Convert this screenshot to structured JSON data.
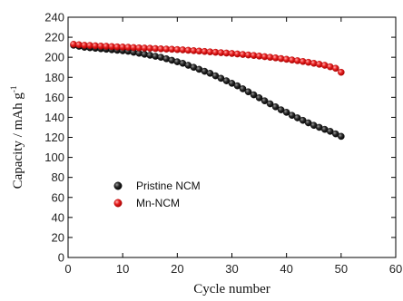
{
  "chart_data": {
    "type": "scatter",
    "xlabel": "Cycle number",
    "ylabel": "Capacity  / mAh g",
    "ylabel_sup": "-1",
    "xlim": [
      0,
      60
    ],
    "ylim": [
      0,
      240
    ],
    "xticks": [
      0,
      10,
      20,
      30,
      40,
      50,
      60
    ],
    "yticks": [
      0,
      20,
      40,
      60,
      80,
      100,
      120,
      140,
      160,
      180,
      200,
      220,
      240
    ],
    "grid": false,
    "legend_position": "left-center",
    "series": [
      {
        "name": "Pristine NCM",
        "color": "#111111",
        "x": [
          1,
          2,
          3,
          4,
          5,
          6,
          7,
          8,
          9,
          10,
          11,
          12,
          13,
          14,
          15,
          16,
          17,
          18,
          19,
          20,
          21,
          22,
          23,
          24,
          25,
          26,
          27,
          28,
          29,
          30,
          31,
          32,
          33,
          34,
          35,
          36,
          37,
          38,
          39,
          40,
          41,
          42,
          43,
          44,
          45,
          46,
          47,
          48,
          49,
          50
        ],
        "values": [
          212,
          211,
          210,
          209.5,
          209,
          208.5,
          208,
          207.5,
          207,
          206.5,
          206,
          205,
          204,
          203,
          202,
          201,
          200,
          198.5,
          197,
          195.5,
          194,
          192,
          190,
          188,
          186,
          184,
          181.5,
          179,
          176.5,
          174,
          171.5,
          168.5,
          165.5,
          162.5,
          159.5,
          156.5,
          153.5,
          150.5,
          147.5,
          145,
          142,
          139.5,
          137,
          134.5,
          132,
          130,
          128,
          126,
          123.5,
          121
        ]
      },
      {
        "name": "Mn-NCM",
        "color": "#e21a1a",
        "x": [
          1,
          2,
          3,
          4,
          5,
          6,
          7,
          8,
          9,
          10,
          11,
          12,
          13,
          14,
          15,
          16,
          17,
          18,
          19,
          20,
          21,
          22,
          23,
          24,
          25,
          26,
          27,
          28,
          29,
          30,
          31,
          32,
          33,
          34,
          35,
          36,
          37,
          38,
          39,
          40,
          41,
          42,
          43,
          44,
          45,
          46,
          47,
          48,
          49,
          50
        ],
        "values": [
          213,
          212.5,
          212,
          211.8,
          211.5,
          211.2,
          211,
          210.7,
          210.4,
          210.2,
          210,
          209.7,
          209.4,
          209.2,
          209,
          208.7,
          208.4,
          208.2,
          208,
          207.7,
          207.4,
          207,
          206.6,
          206.2,
          205.8,
          205.4,
          205,
          204.6,
          204.2,
          203.8,
          203.3,
          202.8,
          202.3,
          201.8,
          201.2,
          200.6,
          200,
          199.4,
          198.7,
          198,
          197.3,
          196.6,
          195.8,
          195,
          194,
          193,
          192,
          190.5,
          189,
          185
        ]
      }
    ]
  }
}
